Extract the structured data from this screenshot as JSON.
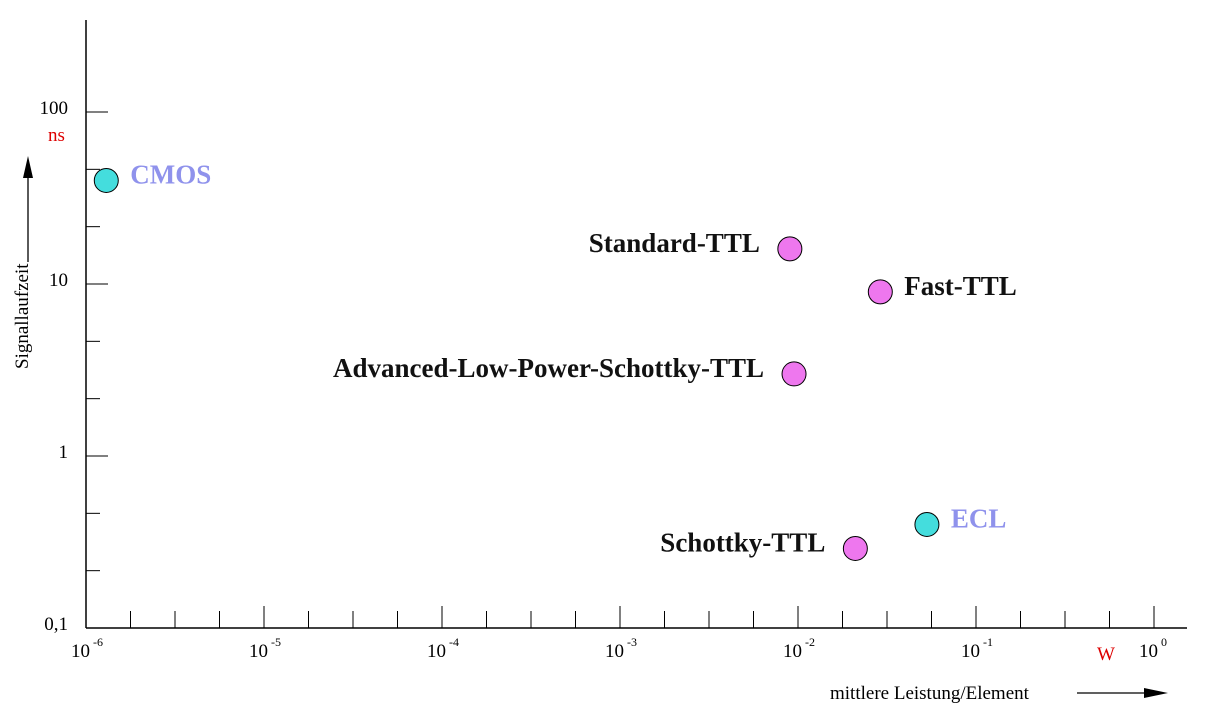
{
  "chart_data": {
    "type": "scatter",
    "title": "",
    "xlabel": "mittlere Leistung/Element",
    "ylabel": "Signallaufzeit",
    "xscale": "log",
    "yscale": "log",
    "xlim": [
      1e-06,
      1.3
    ],
    "ylim": [
      0.1,
      400
    ],
    "x_unit": "W",
    "y_unit": "ns",
    "grid": false,
    "legend": "none",
    "x_ticks": [
      {
        "base": "10",
        "exp": "-6",
        "value": 1e-06
      },
      {
        "base": "10",
        "exp": "-5",
        "value": 1e-05
      },
      {
        "base": "10",
        "exp": "-4",
        "value": 0.0001
      },
      {
        "base": "10",
        "exp": "-3",
        "value": 0.001
      },
      {
        "base": "10",
        "exp": "-2",
        "value": 0.01
      },
      {
        "base": "10",
        "exp": "-1",
        "value": 0.1
      },
      {
        "base": "10",
        "exp": "0",
        "value": 1
      }
    ],
    "y_ticks": [
      {
        "label": "0,1",
        "value": 0.1
      },
      {
        "label": "1",
        "value": 1
      },
      {
        "label": "10",
        "value": 10
      },
      {
        "label": "100",
        "value": 100
      }
    ],
    "colors": {
      "cyan_fill": "#44dddd",
      "magenta_fill": "#ee77ee",
      "cyan_label": "#8f92ec",
      "black_label": "#111111",
      "unit": "#dd0000",
      "axis": "#000000"
    },
    "points": [
      {
        "label": "CMOS",
        "x": 1.3e-06,
        "y": 40,
        "group": "cyan",
        "label_side": "right"
      },
      {
        "label": "Standard-TTL",
        "x": 0.009,
        "y": 16,
        "group": "magenta",
        "label_side": "left"
      },
      {
        "label": "Fast-TTL",
        "x": 0.029,
        "y": 9,
        "group": "magenta",
        "label_side": "right"
      },
      {
        "label": "Advanced-Low-Power-Schottky-TTL",
        "x": 0.0095,
        "y": 3,
        "group": "magenta",
        "label_side": "left"
      },
      {
        "label": "ECL",
        "x": 0.053,
        "y": 0.4,
        "group": "cyan",
        "label_side": "right"
      },
      {
        "label": "Schottky-TTL",
        "x": 0.021,
        "y": 0.29,
        "group": "magenta",
        "label_side": "left"
      }
    ]
  }
}
